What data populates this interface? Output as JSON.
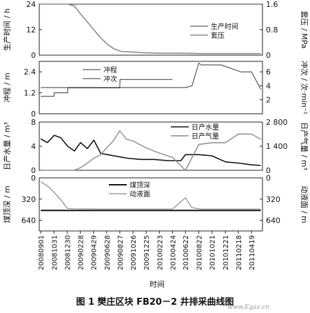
{
  "figure": {
    "caption": "图 1    樊庄区块 FB20－2 井排采曲线图",
    "watermark": "www.Egas.cn",
    "xlabel": "时间"
  },
  "chart_data": [
    {
      "type": "line",
      "panel": "production-time-casing-pressure",
      "x_dates": [
        "2008-09-01",
        "2010-04-24"
      ],
      "ylabel_left": "生产时间 / h",
      "ylabel_right": "套压 / MPa",
      "ylim_left": [
        0,
        24
      ],
      "ylim_right": [
        0,
        1.6
      ],
      "yticks_left": [
        "0",
        "12",
        "24"
      ],
      "yticks_right": [
        "0",
        "0.8",
        "1.6"
      ],
      "legend": [
        "生产时间",
        "套压"
      ],
      "series": [
        {
          "name": "生产时间",
          "axis": "left",
          "x": [
            "2008-09-01",
            "2008-10-31",
            "2008-12-01",
            "2009-01-15",
            "2009-03-01",
            "2009-06-01",
            "2009-09-01",
            "2009-12-01",
            "2010-03-01",
            "2010-06-01",
            "2010-09-01",
            "2010-12-01",
            "2011-03-01",
            "2011-05-31"
          ],
          "values": [
            24,
            24,
            24,
            24,
            24,
            24,
            24,
            24,
            24,
            24,
            24,
            24,
            24,
            24
          ]
        },
        {
          "name": "套压",
          "axis": "right",
          "x": [
            "2008-09-01",
            "2008-11-30",
            "2008-12-31",
            "2009-01-31",
            "2009-02-28",
            "2009-03-31",
            "2009-04-30",
            "2009-05-31",
            "2009-06-30",
            "2009-07-31",
            "2009-09-01",
            "2009-12-01",
            "2010-03-01",
            "2010-06-01",
            "2010-09-01",
            "2010-12-01",
            "2011-03-01",
            "2011-05-31"
          ],
          "values": [
            1.6,
            1.6,
            1.6,
            1.55,
            1.3,
            1.05,
            0.8,
            0.55,
            0.35,
            0.2,
            0.12,
            0.08,
            0.06,
            0.06,
            0.05,
            0.05,
            0.05,
            0.05
          ]
        }
      ]
    },
    {
      "type": "line",
      "panel": "stroke-strokes-per-minute",
      "ylabel_left": "冲程 / m",
      "ylabel_right": "冲次 / 次·min⁻¹",
      "ylim_left": [
        0,
        3.0
      ],
      "ylim_right": [
        0,
        7.5
      ],
      "yticks_left": [
        "0",
        "1.2",
        "2.4"
      ],
      "yticks_right": [
        "2",
        "4",
        "6"
      ],
      "legend": [
        "冲程",
        "冲次"
      ],
      "series": [
        {
          "name": "冲程",
          "axis": "left",
          "x": [
            "2008-09-01",
            "2010-04-24",
            "2010-06-22",
            "2010-07-22",
            "2010-08-22",
            "2010-09-01",
            "2010-12-01",
            "2011-03-01",
            "2011-04-19",
            "2011-05-31"
          ],
          "values": [
            1.5,
            1.5,
            1.5,
            1.6,
            2.9,
            2.8,
            2.8,
            2.4,
            2.4,
            1.4
          ]
        },
        {
          "name": "冲次",
          "axis": "right",
          "x": [
            "2008-09-01",
            "2008-10-31",
            "2008-11-01",
            "2009-01-01",
            "2009-01-02",
            "2009-08-27",
            "2009-08-28",
            "2010-04-24"
          ],
          "values": [
            2.5,
            2.5,
            3.0,
            3.0,
            3.7,
            3.7,
            4.9,
            4.9
          ]
        }
      ]
    },
    {
      "type": "line",
      "panel": "water-gas-production",
      "ylabel_left": "日产水量 / m³",
      "ylabel_right": "日产气量 / m³",
      "ylim_left": [
        0,
        8
      ],
      "ylim_right": [
        0,
        2800
      ],
      "yticks_left": [
        "0",
        "4",
        "8"
      ],
      "yticks_right": [
        "0",
        "1 400",
        "2 800"
      ],
      "legend": [
        "日产水量",
        "日产气量"
      ],
      "series": [
        {
          "name": "日产水量",
          "axis": "left",
          "x": [
            "2008-09-01",
            "2008-10-01",
            "2008-11-01",
            "2008-12-01",
            "2009-01-01",
            "2009-02-01",
            "2009-03-01",
            "2009-04-01",
            "2009-05-01",
            "2009-06-01",
            "2009-07-01",
            "2009-08-01",
            "2009-09-01",
            "2009-10-01",
            "2009-12-01",
            "2010-02-01",
            "2010-04-01",
            "2010-06-01",
            "2010-06-22",
            "2010-08-22",
            "2010-10-21",
            "2010-12-21",
            "2011-02-18",
            "2011-04-19",
            "2011-05-31"
          ],
          "values": [
            5.2,
            4.6,
            5.8,
            5.4,
            4.0,
            3.2,
            4.6,
            3.6,
            5.0,
            2.8,
            2.6,
            2.4,
            2.2,
            2.0,
            1.8,
            1.8,
            1.6,
            1.6,
            2.6,
            2.6,
            2.4,
            1.4,
            1.2,
            0.9,
            0.8
          ]
        },
        {
          "name": "日产气量",
          "axis": "right",
          "x": [
            "2008-09-01",
            "2008-12-31",
            "2009-01-31",
            "2009-02-28",
            "2009-03-31",
            "2009-04-30",
            "2009-05-31",
            "2009-06-28",
            "2009-07-28",
            "2009-08-27",
            "2009-09-26",
            "2009-10-26",
            "2009-12-25",
            "2010-02-23",
            "2010-04-24",
            "2010-06-22",
            "2010-08-22",
            "2010-10-21",
            "2010-12-21",
            "2011-02-18",
            "2011-04-19",
            "2011-05-31"
          ],
          "values": [
            0,
            0,
            0,
            150,
            400,
            700,
            900,
            1300,
            1700,
            2300,
            1800,
            1700,
            1300,
            1000,
            750,
            0,
            1500,
            1600,
            1600,
            2100,
            2100,
            1800
          ]
        }
      ]
    },
    {
      "type": "line",
      "panel": "coal-depth-fluid-level",
      "ylabel_left": "煤顶深 / m",
      "ylabel_right": "动液面 / m",
      "ylim_left": [
        0,
        800
      ],
      "ylim_right": [
        0,
        800
      ],
      "yticks_left": [
        "0",
        "320",
        "640"
      ],
      "yticks_right": [
        "0",
        "320",
        "640"
      ],
      "legend": [
        "煤顶深",
        "动液面"
      ],
      "series": [
        {
          "name": "煤顶深",
          "axis": "left",
          "x": [
            "2008-09-01",
            "2011-05-31"
          ],
          "values": [
            490,
            490
          ]
        },
        {
          "name": "动液面",
          "axis": "right",
          "x": [
            "2008-09-01",
            "2008-10-01",
            "2008-11-01",
            "2008-12-01",
            "2008-12-31",
            "2009-02-01",
            "2009-06-01",
            "2009-12-01",
            "2010-04-24",
            "2010-06-22",
            "2010-07-22",
            "2010-09-01",
            "2011-01-01",
            "2011-05-31"
          ],
          "values": [
            60,
            120,
            220,
            330,
            460,
            465,
            470,
            470,
            470,
            300,
            450,
            470,
            470,
            470
          ]
        }
      ]
    }
  ],
  "x_axis": {
    "tick_labels": [
      "20080901",
      "20081031",
      "20081230",
      "20090228",
      "20090429",
      "20090628",
      "20090827",
      "20091026",
      "20091225",
      "20100223",
      "20100424",
      "20100622",
      "20100822",
      "20101021",
      "20101221",
      "20110218",
      "20110419"
    ],
    "tick_dates": [
      "2008-09-01",
      "2008-10-31",
      "2008-12-30",
      "2009-02-28",
      "2009-04-29",
      "2009-06-28",
      "2009-08-27",
      "2009-10-26",
      "2009-12-25",
      "2010-02-23",
      "2010-04-24",
      "2010-06-22",
      "2010-08-22",
      "2010-10-21",
      "2010-12-21",
      "2011-02-18",
      "2011-04-19"
    ],
    "range": [
      "2008-08-25",
      "2011-06-08"
    ]
  }
}
